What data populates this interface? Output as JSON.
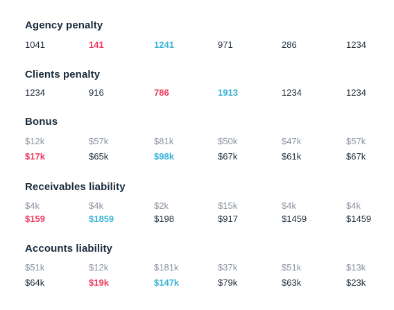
{
  "agency_penalty": {
    "title": "Agency penalty",
    "values": [
      "1041",
      "141",
      "1241",
      "971",
      "286",
      "1234"
    ]
  },
  "clients_penalty": {
    "title": "Clients penalty",
    "values": [
      "1234",
      "916",
      "786",
      "1913",
      "1234",
      "1234"
    ]
  },
  "bonus": {
    "title": "Bonus",
    "top": [
      "$12k",
      "$57k",
      "$81k",
      "$50k",
      "$47k",
      "$57k"
    ],
    "bottom": [
      "$17k",
      "$65k",
      "$98k",
      "$67k",
      "$61k",
      "$67k"
    ]
  },
  "receivables_liability": {
    "title": "Receivables liability",
    "top": [
      "$4k",
      "$4k",
      "$2k",
      "$15k",
      "$4k",
      "$4k"
    ],
    "bottom": [
      "$159",
      "$1859",
      "$198",
      "$917",
      "$1459",
      "$1459"
    ]
  },
  "accounts_liability": {
    "title": "Accounts liability",
    "top": [
      "$51k",
      "$12k",
      "$181k",
      "$37k",
      "$51k",
      "$13k"
    ],
    "bottom": [
      "$64k",
      "$19k",
      "$147k",
      "$79k",
      "$63k",
      "$23k"
    ]
  },
  "colors": {
    "highlight_low": "#ef3b5e",
    "highlight_high": "#3ab4d8",
    "muted": "#8a94a0",
    "text": "#22303e"
  }
}
